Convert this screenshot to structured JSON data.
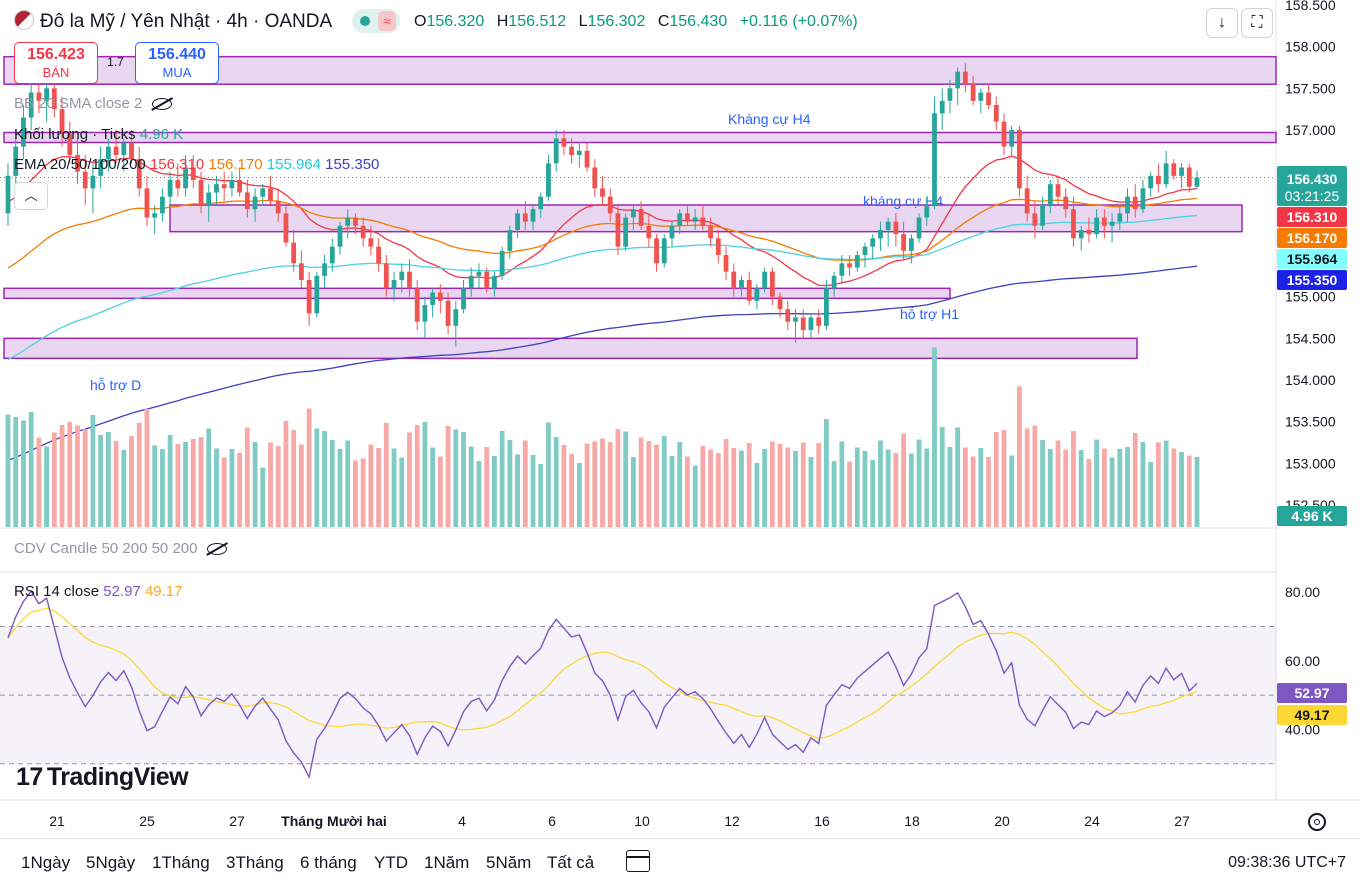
{
  "header": {
    "title": "Đô la Mỹ / Yên Nhật · 4h · OANDA",
    "o_label": "O",
    "o": "156.320",
    "h_label": "H",
    "h": "156.512",
    "l_label": "L",
    "l": "156.302",
    "c_label": "C",
    "c": "156.430",
    "change": "+0.116 (+0.07%)"
  },
  "trade": {
    "sell_price": "156.423",
    "sell_label": "BÁN",
    "buy_price": "156.440",
    "buy_label": "MUA",
    "spread": "1.7"
  },
  "indicators": {
    "bb": "BB 20 SMA close 2",
    "volume_label": "Khối lượng · Ticks",
    "volume_value": "4.96 K",
    "ema_label": "EMA 20/50/100/200",
    "ema20": "156.310",
    "ema50": "156.170",
    "ema100": "155.964",
    "ema200": "155.350",
    "cdv": "CDV Candle 50 200 50 200",
    "rsi_label": "RSI 14 close",
    "rsi_value": "52.97",
    "rsi_ma": "49.17"
  },
  "brand": "TradingView",
  "ranges": [
    "1Ngày",
    "5Ngày",
    "1Tháng",
    "3Tháng",
    "6 tháng",
    "YTD",
    "1Năm",
    "5Năm",
    "Tất cả"
  ],
  "clock": "09:38:36 UTC+7",
  "colors": {
    "up": "#26a69a",
    "down": "#ef5350",
    "ema20": "#f23645",
    "ema50": "#f57c00",
    "ema100": "#4dd0e1",
    "ema200": "#3f3fbf",
    "zone_fill": "#e1c9ec",
    "zone_border": "#9c27b0",
    "rsi": "#7e57c2",
    "rsi_ma": "#fdd835"
  },
  "chart_data": {
    "type": "candlestick",
    "timeframe": "4h",
    "price_axis": {
      "min": 152.5,
      "max": 158.5,
      "ticks": [
        "158.500",
        "158.000",
        "157.500",
        "157.000",
        "156.500",
        "156.000",
        "155.500",
        "155.000",
        "154.500",
        "154.000",
        "153.500",
        "153.000",
        "152.500"
      ]
    },
    "x_labels": [
      "21",
      "25",
      "27",
      "Tháng Mười hai",
      "4",
      "6",
      "10",
      "12",
      "16",
      "18",
      "20",
      "24",
      "27"
    ],
    "last_price": {
      "value": "156.430",
      "countdown": "03:21:25"
    },
    "zones": [
      {
        "label": "",
        "low": 157.55,
        "high": 157.88
      },
      {
        "label": "Kháng cự H4",
        "low": 156.85,
        "high": 156.97
      },
      {
        "label": "kháng cự H4",
        "low": 155.78,
        "high": 156.1
      },
      {
        "label": "hỗ trợ H1",
        "low": 154.98,
        "high": 155.1
      },
      {
        "label": "hỗ trợ D",
        "low": 154.26,
        "high": 154.5
      }
    ],
    "candles": [
      [
        156.0,
        156.6,
        155.85,
        156.45
      ],
      [
        156.45,
        156.9,
        156.3,
        156.8
      ],
      [
        156.8,
        157.3,
        156.65,
        157.15
      ],
      [
        157.15,
        157.6,
        157.0,
        157.45
      ],
      [
        157.45,
        157.65,
        157.2,
        157.35
      ],
      [
        157.35,
        157.55,
        157.1,
        157.5
      ],
      [
        157.5,
        157.6,
        157.15,
        157.25
      ],
      [
        157.25,
        157.4,
        156.8,
        156.95
      ],
      [
        156.95,
        157.1,
        156.6,
        156.7
      ],
      [
        156.7,
        156.9,
        156.35,
        156.5
      ],
      [
        156.5,
        156.7,
        156.1,
        156.3
      ],
      [
        156.3,
        156.6,
        156.0,
        156.45
      ],
      [
        156.45,
        156.8,
        156.3,
        156.65
      ],
      [
        156.65,
        156.9,
        156.5,
        156.8
      ],
      [
        156.8,
        157.0,
        156.6,
        156.7
      ],
      [
        156.7,
        156.9,
        156.5,
        156.85
      ],
      [
        156.85,
        157.0,
        156.6,
        156.65
      ],
      [
        156.65,
        156.8,
        156.2,
        156.3
      ],
      [
        156.3,
        156.45,
        155.85,
        155.95
      ],
      [
        155.95,
        156.1,
        155.75,
        156.0
      ],
      [
        156.0,
        156.3,
        155.9,
        156.2
      ],
      [
        156.2,
        156.5,
        156.1,
        156.4
      ],
      [
        156.4,
        156.6,
        156.2,
        156.3
      ],
      [
        156.3,
        156.7,
        156.2,
        156.55
      ],
      [
        156.55,
        156.7,
        156.3,
        156.4
      ],
      [
        156.4,
        156.5,
        156.0,
        156.1
      ],
      [
        156.1,
        156.35,
        155.9,
        156.25
      ],
      [
        156.25,
        156.45,
        156.1,
        156.35
      ],
      [
        156.35,
        156.5,
        156.15,
        156.3
      ],
      [
        156.3,
        156.5,
        156.2,
        156.4
      ],
      [
        156.4,
        156.55,
        156.2,
        156.25
      ],
      [
        156.25,
        156.4,
        155.95,
        156.05
      ],
      [
        156.05,
        156.3,
        155.9,
        156.2
      ],
      [
        156.2,
        156.35,
        156.1,
        156.3
      ],
      [
        156.3,
        156.45,
        156.1,
        156.15
      ],
      [
        156.15,
        156.3,
        155.9,
        156.0
      ],
      [
        156.0,
        156.1,
        155.6,
        155.65
      ],
      [
        155.65,
        155.8,
        155.3,
        155.4
      ],
      [
        155.4,
        155.55,
        155.1,
        155.2
      ],
      [
        155.2,
        155.3,
        154.65,
        154.8
      ],
      [
        154.8,
        155.3,
        154.75,
        155.25
      ],
      [
        155.25,
        155.5,
        155.1,
        155.4
      ],
      [
        155.4,
        155.7,
        155.3,
        155.6
      ],
      [
        155.6,
        155.9,
        155.5,
        155.85
      ],
      [
        155.85,
        156.05,
        155.7,
        155.95
      ],
      [
        155.95,
        156.0,
        155.75,
        155.85
      ],
      [
        155.85,
        155.95,
        155.6,
        155.7
      ],
      [
        155.7,
        155.85,
        155.5,
        155.6
      ],
      [
        155.6,
        155.7,
        155.3,
        155.4
      ],
      [
        155.4,
        155.5,
        155.0,
        155.1
      ],
      [
        155.1,
        155.3,
        154.95,
        155.2
      ],
      [
        155.2,
        155.4,
        155.05,
        155.3
      ],
      [
        155.3,
        155.45,
        155.0,
        155.1
      ],
      [
        155.1,
        155.2,
        154.6,
        154.7
      ],
      [
        154.7,
        155.0,
        154.5,
        154.9
      ],
      [
        154.9,
        155.1,
        154.75,
        155.05
      ],
      [
        155.05,
        155.15,
        154.8,
        154.95
      ],
      [
        154.95,
        155.05,
        154.55,
        154.65
      ],
      [
        154.65,
        154.95,
        154.4,
        154.85
      ],
      [
        154.85,
        155.2,
        154.8,
        155.1
      ],
      [
        155.1,
        155.35,
        155.0,
        155.25
      ],
      [
        155.25,
        155.4,
        155.1,
        155.3
      ],
      [
        155.3,
        155.35,
        155.05,
        155.1
      ],
      [
        155.1,
        155.3,
        155.0,
        155.25
      ],
      [
        155.25,
        155.6,
        155.2,
        155.55
      ],
      [
        155.55,
        155.85,
        155.45,
        155.8
      ],
      [
        155.8,
        156.05,
        155.7,
        156.0
      ],
      [
        156.0,
        156.15,
        155.8,
        155.9
      ],
      [
        155.9,
        156.1,
        155.8,
        156.05
      ],
      [
        156.05,
        156.25,
        155.95,
        156.2
      ],
      [
        156.2,
        156.7,
        156.15,
        156.6
      ],
      [
        156.6,
        157.0,
        156.5,
        156.9
      ],
      [
        156.9,
        157.0,
        156.7,
        156.8
      ],
      [
        156.8,
        156.9,
        156.6,
        156.7
      ],
      [
        156.7,
        156.85,
        156.55,
        156.75
      ],
      [
        156.75,
        156.85,
        156.5,
        156.55
      ],
      [
        156.55,
        156.65,
        156.2,
        156.3
      ],
      [
        156.3,
        156.45,
        156.1,
        156.2
      ],
      [
        156.2,
        156.3,
        155.9,
        156.0
      ],
      [
        156.0,
        156.1,
        155.5,
        155.6
      ],
      [
        155.6,
        156.0,
        155.55,
        155.95
      ],
      [
        155.95,
        156.1,
        155.8,
        156.05
      ],
      [
        156.05,
        156.15,
        155.8,
        155.85
      ],
      [
        155.85,
        156.0,
        155.6,
        155.7
      ],
      [
        155.7,
        155.75,
        155.3,
        155.4
      ],
      [
        155.4,
        155.75,
        155.35,
        155.7
      ],
      [
        155.7,
        155.9,
        155.6,
        155.85
      ],
      [
        155.85,
        156.05,
        155.75,
        156.0
      ],
      [
        156.0,
        156.1,
        155.85,
        155.9
      ],
      [
        155.9,
        156.05,
        155.8,
        155.95
      ],
      [
        155.95,
        156.1,
        155.8,
        155.85
      ],
      [
        155.85,
        155.95,
        155.6,
        155.7
      ],
      [
        155.7,
        155.8,
        155.4,
        155.5
      ],
      [
        155.5,
        155.6,
        155.2,
        155.3
      ],
      [
        155.3,
        155.4,
        155.0,
        155.1
      ],
      [
        155.1,
        155.25,
        155.0,
        155.2
      ],
      [
        155.2,
        155.3,
        154.9,
        154.95
      ],
      [
        154.95,
        155.15,
        154.85,
        155.1
      ],
      [
        155.1,
        155.35,
        155.05,
        155.3
      ],
      [
        155.3,
        155.35,
        154.9,
        155.0
      ],
      [
        155.0,
        155.05,
        154.75,
        154.85
      ],
      [
        154.85,
        154.95,
        154.6,
        154.7
      ],
      [
        154.7,
        154.85,
        154.45,
        154.75
      ],
      [
        154.75,
        154.85,
        154.5,
        154.6
      ],
      [
        154.6,
        154.8,
        154.5,
        154.75
      ],
      [
        154.75,
        154.85,
        154.55,
        154.65
      ],
      [
        154.65,
        155.2,
        154.6,
        155.1
      ],
      [
        155.1,
        155.3,
        155.0,
        155.25
      ],
      [
        155.25,
        155.5,
        155.15,
        155.4
      ],
      [
        155.4,
        155.5,
        155.25,
        155.35
      ],
      [
        155.35,
        155.55,
        155.3,
        155.5
      ],
      [
        155.5,
        155.65,
        155.35,
        155.6
      ],
      [
        155.6,
        155.75,
        155.45,
        155.7
      ],
      [
        155.7,
        155.9,
        155.55,
        155.8
      ],
      [
        155.8,
        155.95,
        155.6,
        155.9
      ],
      [
        155.9,
        156.0,
        155.6,
        155.75
      ],
      [
        155.75,
        155.9,
        155.45,
        155.55
      ],
      [
        155.55,
        155.75,
        155.4,
        155.7
      ],
      [
        155.7,
        156.0,
        155.65,
        155.95
      ],
      [
        155.95,
        156.2,
        155.85,
        156.1
      ],
      [
        156.1,
        157.4,
        156.05,
        157.2
      ],
      [
        157.2,
        157.5,
        157.0,
        157.35
      ],
      [
        157.35,
        157.6,
        157.2,
        157.5
      ],
      [
        157.5,
        157.75,
        157.3,
        157.7
      ],
      [
        157.7,
        157.8,
        157.45,
        157.55
      ],
      [
        157.55,
        157.65,
        157.3,
        157.35
      ],
      [
        157.35,
        157.5,
        157.2,
        157.45
      ],
      [
        157.45,
        157.55,
        157.25,
        157.3
      ],
      [
        157.3,
        157.4,
        157.0,
        157.1
      ],
      [
        157.1,
        157.2,
        156.7,
        156.8
      ],
      [
        156.8,
        157.05,
        156.7,
        157.0
      ],
      [
        157.0,
        157.05,
        156.2,
        156.3
      ],
      [
        156.3,
        156.45,
        155.9,
        156.0
      ],
      [
        156.0,
        156.15,
        155.7,
        155.85
      ],
      [
        155.85,
        156.2,
        155.8,
        156.1
      ],
      [
        156.1,
        156.4,
        156.0,
        156.35
      ],
      [
        156.35,
        156.45,
        156.1,
        156.2
      ],
      [
        156.2,
        156.3,
        155.95,
        156.05
      ],
      [
        156.05,
        156.2,
        155.6,
        155.7
      ],
      [
        155.7,
        155.85,
        155.55,
        155.8
      ],
      [
        155.8,
        155.95,
        155.65,
        155.75
      ],
      [
        155.75,
        156.05,
        155.7,
        155.95
      ],
      [
        155.95,
        156.05,
        155.7,
        155.85
      ],
      [
        155.85,
        156.0,
        155.65,
        155.9
      ],
      [
        155.9,
        156.1,
        155.8,
        156.0
      ],
      [
        156.0,
        156.3,
        155.9,
        156.2
      ],
      [
        156.2,
        156.35,
        155.95,
        156.05
      ],
      [
        156.05,
        156.4,
        156.0,
        156.3
      ],
      [
        156.3,
        156.5,
        156.2,
        156.45
      ],
      [
        156.45,
        156.6,
        156.25,
        156.35
      ],
      [
        156.35,
        156.75,
        156.3,
        156.6
      ],
      [
        156.6,
        156.65,
        156.4,
        156.45
      ],
      [
        156.45,
        156.6,
        156.3,
        156.55
      ],
      [
        156.55,
        156.6,
        156.25,
        156.32
      ],
      [
        156.32,
        156.51,
        156.3,
        156.43
      ]
    ],
    "volume_axis_label": "4.96 K",
    "rsi": {
      "axis": {
        "min": 20,
        "max": 85,
        "ticks": [
          "80.00",
          "60.00",
          "40.00"
        ]
      },
      "bands": [
        70,
        50,
        30
      ],
      "value": "52.97",
      "ma": "49.17"
    }
  }
}
